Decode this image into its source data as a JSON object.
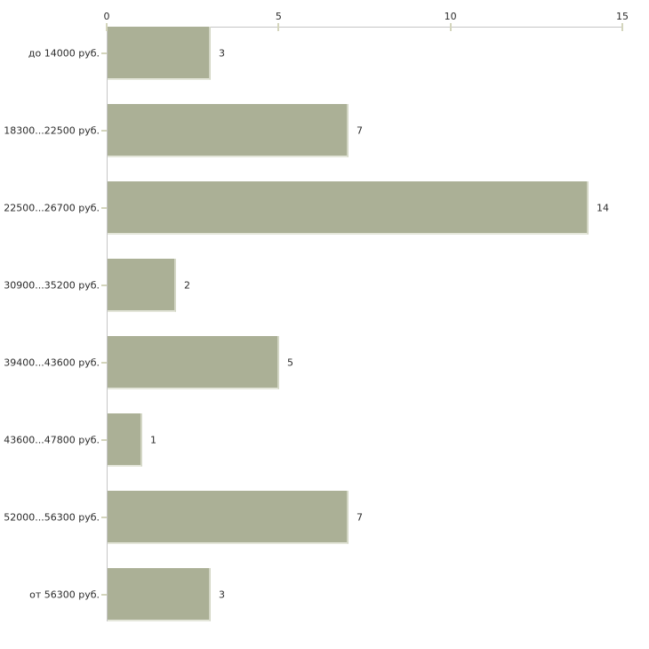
{
  "chart_data": {
    "type": "bar",
    "orientation": "horizontal",
    "title": "",
    "xlabel": "",
    "ylabel": "",
    "categories": [
      "до 14000 руб.",
      "18300...22500 руб.",
      "22500...26700 руб.",
      "30900...35200 руб.",
      "39400...43600 руб.",
      "43600...47800 руб.",
      "52000...56300 руб.",
      "от 56300 руб."
    ],
    "values": [
      3,
      7,
      14,
      2,
      5,
      1,
      7,
      3
    ],
    "x_ticks": [
      0,
      5,
      10,
      15
    ],
    "xlim": [
      0,
      15
    ],
    "grid": false,
    "legend": null,
    "colors": {
      "bar_fill": "#abb096",
      "bar_edge_right": "#d4d7c6",
      "bar_edge_bottom": "#e4e6da",
      "axis_line": "#c6c6c6",
      "tick_mark": "#d4d5bc",
      "text": "#2b2b2b",
      "background": "#ffffff"
    }
  }
}
